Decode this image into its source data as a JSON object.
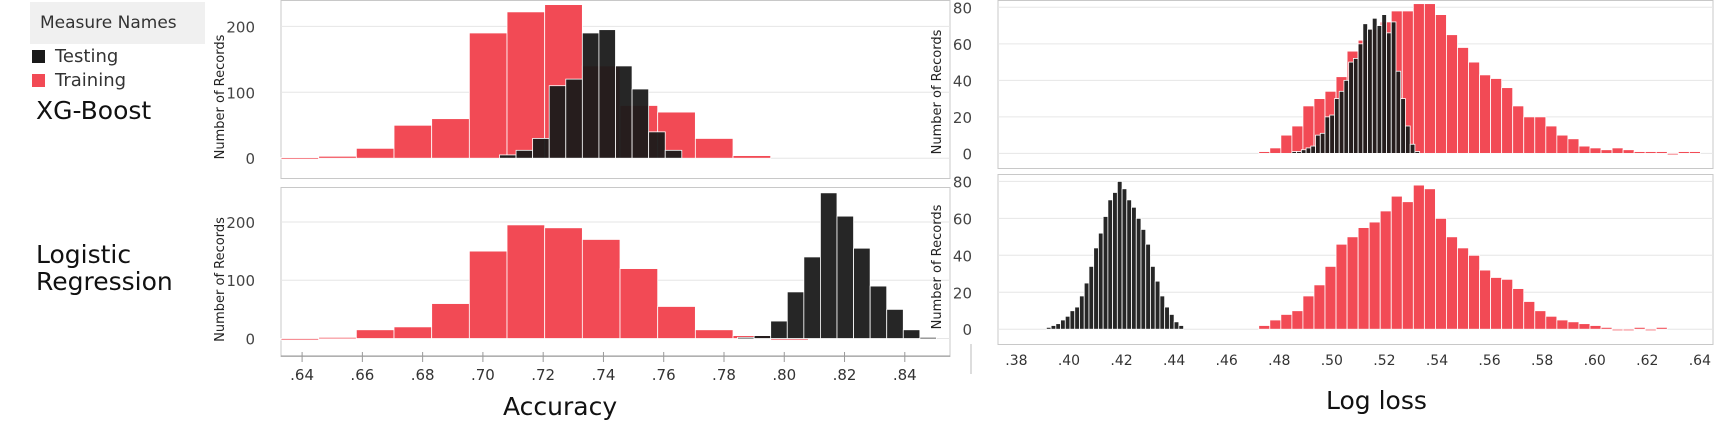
{
  "legend": {
    "title": "Measure Names",
    "items": [
      {
        "label": "Testing",
        "color": "#1a1a1a"
      },
      {
        "label": "Training",
        "color": "#f24a55"
      }
    ]
  },
  "row_labels": {
    "xgb": "XG-Boost",
    "lr_line1": "Logistic",
    "lr_line2": "Regression"
  },
  "x_titles": {
    "accuracy": "Accuracy",
    "logloss": "Log loss"
  },
  "colors": {
    "training": "#f24a55",
    "testing": "#1a1a1a",
    "border": "#c8c8c8",
    "grid": "#e6e6e6"
  },
  "chart_data": [
    {
      "type": "bar",
      "panel": "XG-Boost Accuracy",
      "ylabel": "Number of Records",
      "xlim": [
        0.633,
        0.855
      ],
      "ylim": [
        -30,
        240
      ],
      "yticks": [
        0,
        100,
        200
      ],
      "bin_width": 0.0125,
      "series": [
        {
          "name": "Training",
          "bin_starts": [
            0.633,
            0.6455,
            0.658,
            0.6705,
            0.683,
            0.6955,
            0.708,
            0.7205,
            0.733,
            0.7455,
            0.758,
            0.7705,
            0.783
          ],
          "values": [
            1,
            3,
            15,
            50,
            60,
            190,
            222,
            233,
            140,
            80,
            70,
            30,
            4
          ]
        },
        {
          "name": "Testing",
          "bin_starts": [
            0.7055,
            0.711,
            0.7165,
            0.722,
            0.7275,
            0.733,
            0.7385,
            0.744,
            0.7495,
            0.755,
            0.7605
          ],
          "values": [
            5,
            12,
            30,
            110,
            120,
            190,
            195,
            140,
            105,
            40,
            12
          ]
        }
      ]
    },
    {
      "type": "bar",
      "panel": "XG-Boost Log loss",
      "ylabel": "Number of Records",
      "xlim": [
        0.373,
        0.645
      ],
      "ylim": [
        -8,
        84
      ],
      "yticks": [
        0,
        20,
        40,
        60,
        80
      ],
      "bin_width": 0.0042,
      "series": [
        {
          "name": "Training",
          "bin_starts": [
            0.4722,
            0.4764,
            0.4806,
            0.4848,
            0.489,
            0.4932,
            0.4974,
            0.5016,
            0.5058,
            0.51,
            0.5142,
            0.5184,
            0.5226,
            0.5268,
            0.531,
            0.5352,
            0.5394,
            0.5436,
            0.5478,
            0.552,
            0.5562,
            0.5604,
            0.5646,
            0.5688,
            0.573,
            0.5772,
            0.5814,
            0.5856,
            0.5898,
            0.594,
            0.5982,
            0.6024,
            0.6066,
            0.6108,
            0.615,
            0.6192,
            0.6234,
            0.6276,
            0.6318,
            0.636
          ],
          "values": [
            1,
            3,
            10,
            15,
            26,
            30,
            34,
            42,
            56,
            62,
            68,
            72,
            78,
            78,
            82,
            82,
            76,
            65,
            58,
            50,
            43,
            41,
            36,
            26,
            20,
            20,
            15,
            10,
            8,
            4,
            3,
            2,
            3,
            2,
            1,
            1,
            1,
            0,
            1,
            1
          ]
        },
        {
          "name": "Testing",
          "bin_starts": [
            0.4848,
            0.4866,
            0.4884,
            0.4902,
            0.492,
            0.4938,
            0.4956,
            0.4974,
            0.4992,
            0.501,
            0.5028,
            0.5046,
            0.5064,
            0.5082,
            0.51,
            0.5118,
            0.5136,
            0.5154,
            0.5172,
            0.519,
            0.5208,
            0.5226,
            0.5244,
            0.5262,
            0.528,
            0.5298,
            0.5316
          ],
          "values": [
            1,
            1,
            2,
            3,
            4,
            10,
            11,
            20,
            21,
            30,
            34,
            40,
            50,
            52,
            60,
            71,
            68,
            74,
            70,
            76,
            66,
            72,
            45,
            30,
            15,
            5,
            1
          ]
        }
      ]
    },
    {
      "type": "bar",
      "panel": "Logistic Regression Accuracy",
      "ylabel": "Number of Records",
      "xlim": [
        0.633,
        0.855
      ],
      "ylim": [
        -30,
        260
      ],
      "yticks": [
        0,
        100,
        200
      ],
      "bin_width": 0.0125,
      "series": [
        {
          "name": "Training",
          "bin_starts": [
            0.633,
            0.6455,
            0.658,
            0.6705,
            0.683,
            0.6955,
            0.708,
            0.7205,
            0.733,
            0.7455,
            0.758,
            0.7705,
            0.783,
            0.7955
          ],
          "values": [
            0,
            2,
            15,
            20,
            60,
            150,
            195,
            190,
            170,
            120,
            55,
            15,
            5,
            0
          ]
        },
        {
          "name": "Testing",
          "bin_starts": [
            0.7845,
            0.79,
            0.7955,
            0.801,
            0.8065,
            0.812,
            0.8175,
            0.823,
            0.8285,
            0.834,
            0.8395,
            0.845
          ],
          "values": [
            2,
            5,
            30,
            80,
            140,
            250,
            210,
            155,
            90,
            50,
            15,
            2
          ]
        }
      ]
    },
    {
      "type": "bar",
      "panel": "Logistic Regression Log loss",
      "ylabel": "Number of Records",
      "xlim": [
        0.373,
        0.645
      ],
      "ylim": [
        -8,
        84
      ],
      "yticks": [
        0,
        20,
        40,
        60,
        80
      ],
      "xticks": [
        ".38",
        ".40",
        ".42",
        ".44",
        ".46",
        ".48",
        ".50",
        ".52",
        ".54",
        ".56",
        ".58",
        ".60",
        ".62",
        ".64"
      ],
      "bin_width": 0.0042,
      "series": [
        {
          "name": "Training",
          "bin_starts": [
            0.4722,
            0.4764,
            0.4806,
            0.4848,
            0.489,
            0.4932,
            0.4974,
            0.5016,
            0.5058,
            0.51,
            0.5142,
            0.5184,
            0.5226,
            0.5268,
            0.531,
            0.5352,
            0.5394,
            0.5436,
            0.5478,
            0.552,
            0.5562,
            0.5604,
            0.5646,
            0.5688,
            0.573,
            0.5772,
            0.5814,
            0.5856,
            0.5898,
            0.594,
            0.5982,
            0.6024,
            0.6066,
            0.6108,
            0.615,
            0.6192,
            0.6234
          ],
          "values": [
            2,
            5,
            8,
            10,
            18,
            24,
            34,
            46,
            50,
            55,
            58,
            64,
            72,
            69,
            78,
            76,
            60,
            50,
            44,
            40,
            32,
            28,
            27,
            22,
            15,
            10,
            7,
            5,
            4,
            3,
            2,
            1,
            0,
            0,
            1,
            0,
            1
          ]
        },
        {
          "name": "Testing",
          "bin_starts": [
            0.3914,
            0.3932,
            0.395,
            0.3968,
            0.3986,
            0.4004,
            0.4022,
            0.404,
            0.4058,
            0.4076,
            0.4094,
            0.4112,
            0.413,
            0.4148,
            0.4166,
            0.4184,
            0.4202,
            0.422,
            0.4238,
            0.4256,
            0.4274,
            0.4292,
            0.431,
            0.4328,
            0.4346,
            0.4364,
            0.4382,
            0.44,
            0.4418
          ],
          "values": [
            1,
            2,
            3,
            5,
            7,
            10,
            12,
            18,
            25,
            34,
            44,
            52,
            61,
            70,
            74,
            80,
            76,
            70,
            66,
            60,
            54,
            46,
            34,
            26,
            18,
            12,
            8,
            4,
            2
          ]
        }
      ]
    }
  ],
  "axes": {
    "accuracy_xticks": [
      ".64",
      ".66",
      ".68",
      ".70",
      ".72",
      ".74",
      ".76",
      ".78",
      ".80",
      ".82",
      ".84"
    ],
    "ylabel": "Number of Records"
  }
}
